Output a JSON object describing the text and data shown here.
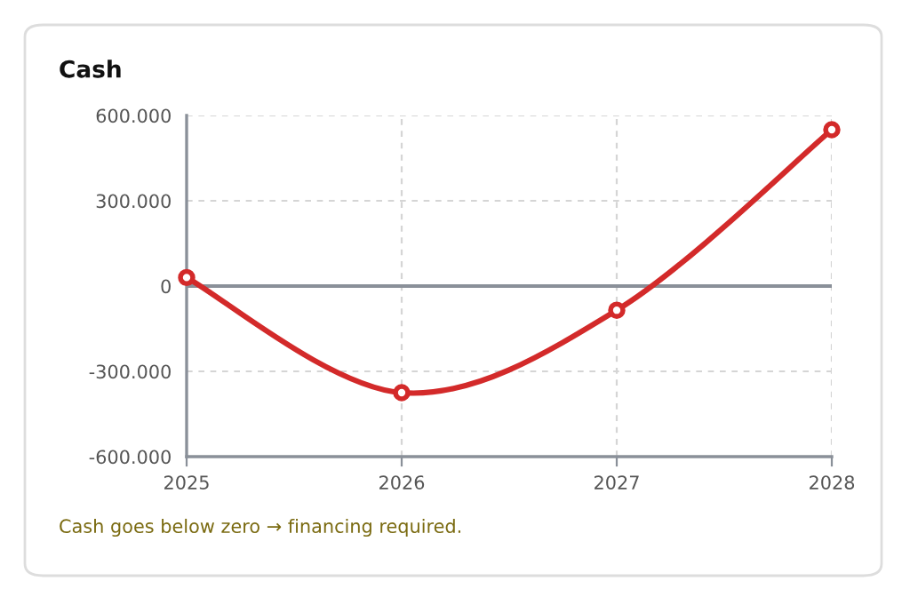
{
  "chart_data": {
    "type": "line",
    "title": "Cash",
    "categories": [
      "2025",
      "2026",
      "2027",
      "2028"
    ],
    "series": [
      {
        "color": "#d32a2a",
        "values": [
          30000,
          -375000,
          -85000,
          550000
        ]
      }
    ],
    "ylim": [
      -600000,
      600000
    ],
    "yticks": [
      {
        "value": -600000,
        "label": "-600.000"
      },
      {
        "value": -300000,
        "label": "-300.000"
      },
      0,
      {
        "value": 300000,
        "label": "300.000"
      },
      {
        "value": 600000,
        "label": "600.000"
      }
    ],
    "ref_lines": [
      {
        "axis": "y",
        "value": 0,
        "color": "#8a9099"
      }
    ],
    "grid": true,
    "marker": "circle",
    "line_style": "solid",
    "annotations": [
      "Cash goes below zero → financing required."
    ]
  }
}
